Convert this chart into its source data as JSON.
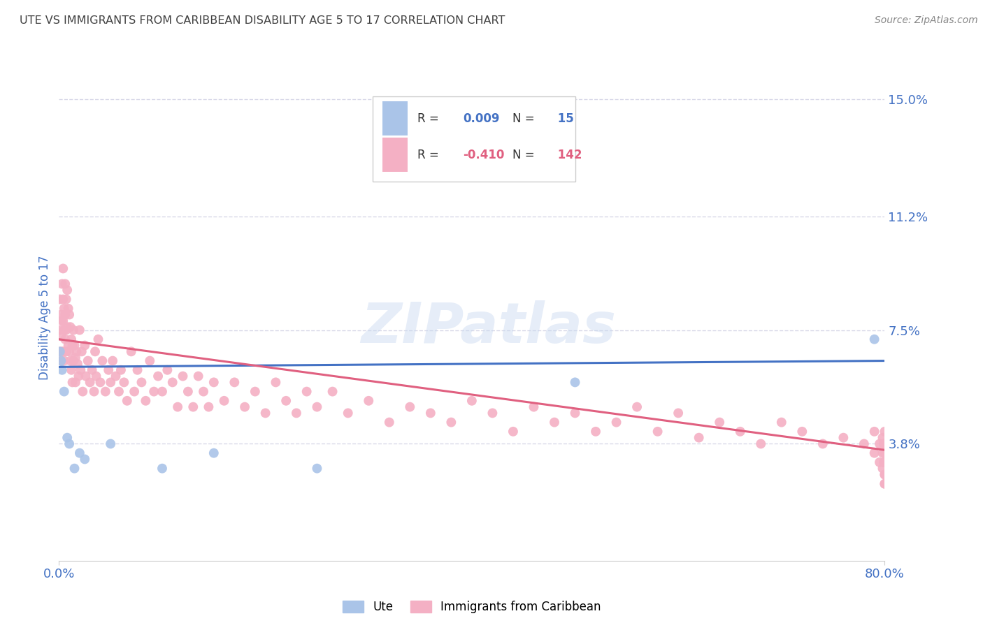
{
  "title": "UTE VS IMMIGRANTS FROM CARIBBEAN DISABILITY AGE 5 TO 17 CORRELATION CHART",
  "source": "Source: ZipAtlas.com",
  "ylabel": "Disability Age 5 to 17",
  "xlim": [
    0.0,
    0.8
  ],
  "ylim": [
    0.0,
    0.158
  ],
  "ytick_positions": [
    0.038,
    0.075,
    0.112,
    0.15
  ],
  "ytick_labels": [
    "3.8%",
    "7.5%",
    "11.2%",
    "15.0%"
  ],
  "series1_name": "Ute",
  "series1_color": "#aac4e8",
  "series1_line_color": "#4472c4",
  "series1_R": 0.009,
  "series1_N": 15,
  "series1_x": [
    0.001,
    0.002,
    0.003,
    0.005,
    0.008,
    0.01,
    0.015,
    0.02,
    0.025,
    0.05,
    0.1,
    0.15,
    0.25,
    0.5,
    0.79
  ],
  "series1_y": [
    0.068,
    0.065,
    0.062,
    0.055,
    0.04,
    0.038,
    0.03,
    0.035,
    0.033,
    0.038,
    0.03,
    0.035,
    0.03,
    0.058,
    0.072
  ],
  "series2_name": "Immigrants from Caribbean",
  "series2_color": "#f4b0c4",
  "series2_line_color": "#e06080",
  "series2_R": -0.41,
  "series2_N": 142,
  "series2_x": [
    0.001,
    0.001,
    0.001,
    0.002,
    0.002,
    0.002,
    0.003,
    0.003,
    0.003,
    0.004,
    0.004,
    0.004,
    0.004,
    0.005,
    0.005,
    0.005,
    0.006,
    0.006,
    0.006,
    0.007,
    0.007,
    0.007,
    0.008,
    0.008,
    0.009,
    0.009,
    0.01,
    0.01,
    0.011,
    0.011,
    0.012,
    0.012,
    0.013,
    0.013,
    0.014,
    0.014,
    0.015,
    0.016,
    0.016,
    0.017,
    0.018,
    0.019,
    0.02,
    0.021,
    0.022,
    0.023,
    0.025,
    0.026,
    0.028,
    0.03,
    0.032,
    0.034,
    0.035,
    0.036,
    0.038,
    0.04,
    0.042,
    0.045,
    0.048,
    0.05,
    0.052,
    0.055,
    0.058,
    0.06,
    0.063,
    0.066,
    0.07,
    0.073,
    0.076,
    0.08,
    0.084,
    0.088,
    0.092,
    0.096,
    0.1,
    0.105,
    0.11,
    0.115,
    0.12,
    0.125,
    0.13,
    0.135,
    0.14,
    0.145,
    0.15,
    0.16,
    0.17,
    0.18,
    0.19,
    0.2,
    0.21,
    0.22,
    0.23,
    0.24,
    0.25,
    0.265,
    0.28,
    0.3,
    0.32,
    0.34,
    0.36,
    0.38,
    0.4,
    0.42,
    0.44,
    0.46,
    0.48,
    0.5,
    0.52,
    0.54,
    0.56,
    0.58,
    0.6,
    0.62,
    0.64,
    0.66,
    0.68,
    0.7,
    0.72,
    0.74,
    0.76,
    0.78,
    0.79,
    0.79,
    0.795,
    0.795,
    0.798,
    0.798,
    0.798,
    0.799,
    0.799,
    0.8,
    0.8,
    0.8,
    0.8,
    0.8,
    0.8,
    0.8,
    0.8,
    0.8,
    0.8,
    0.8
  ],
  "series2_y": [
    0.085,
    0.075,
    0.068,
    0.08,
    0.073,
    0.065,
    0.09,
    0.078,
    0.068,
    0.095,
    0.085,
    0.078,
    0.068,
    0.082,
    0.075,
    0.065,
    0.09,
    0.08,
    0.072,
    0.085,
    0.075,
    0.068,
    0.088,
    0.076,
    0.082,
    0.07,
    0.08,
    0.068,
    0.076,
    0.065,
    0.072,
    0.062,
    0.07,
    0.058,
    0.075,
    0.065,
    0.07,
    0.066,
    0.058,
    0.068,
    0.064,
    0.06,
    0.075,
    0.062,
    0.068,
    0.055,
    0.07,
    0.06,
    0.065,
    0.058,
    0.062,
    0.055,
    0.068,
    0.06,
    0.072,
    0.058,
    0.065,
    0.055,
    0.062,
    0.058,
    0.065,
    0.06,
    0.055,
    0.062,
    0.058,
    0.052,
    0.068,
    0.055,
    0.062,
    0.058,
    0.052,
    0.065,
    0.055,
    0.06,
    0.055,
    0.062,
    0.058,
    0.05,
    0.06,
    0.055,
    0.05,
    0.06,
    0.055,
    0.05,
    0.058,
    0.052,
    0.058,
    0.05,
    0.055,
    0.048,
    0.058,
    0.052,
    0.048,
    0.055,
    0.05,
    0.055,
    0.048,
    0.052,
    0.045,
    0.05,
    0.048,
    0.045,
    0.052,
    0.048,
    0.042,
    0.05,
    0.045,
    0.048,
    0.042,
    0.045,
    0.05,
    0.042,
    0.048,
    0.04,
    0.045,
    0.042,
    0.038,
    0.045,
    0.042,
    0.038,
    0.04,
    0.038,
    0.035,
    0.042,
    0.038,
    0.032,
    0.04,
    0.035,
    0.03,
    0.038,
    0.032,
    0.042,
    0.035,
    0.038,
    0.028,
    0.032,
    0.025,
    0.035,
    0.038,
    0.028,
    0.025,
    0.032
  ],
  "watermark_text": "ZIPatlas",
  "background_color": "#ffffff",
  "grid_color": "#d8d8e8",
  "title_color": "#404040",
  "tick_label_color": "#4472c4",
  "source_color": "#888888",
  "trend1_y0": 0.063,
  "trend1_y1": 0.065,
  "trend2_y0": 0.072,
  "trend2_y1": 0.036
}
